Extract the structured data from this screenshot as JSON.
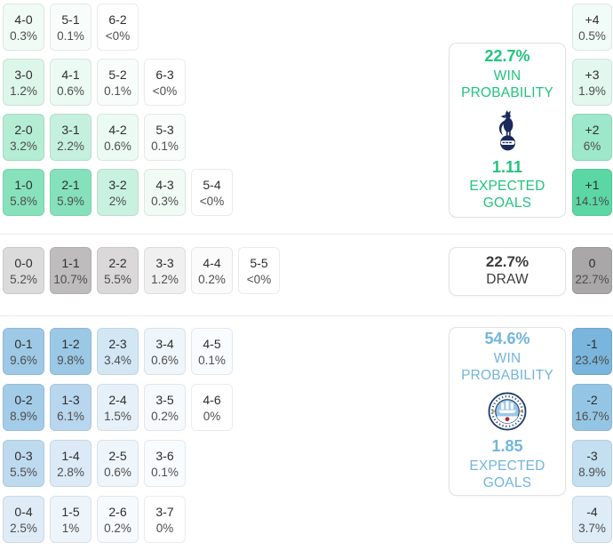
{
  "chart_data": {
    "type": "heatmap",
    "title": "Correct score probability matrix with win/draw probabilities and expected goals",
    "home_team": "Tottenham Hotspur",
    "away_team": "Manchester City",
    "legend_position": "right-center panels",
    "sections": {
      "home": {
        "panel": {
          "win_pct": "22.7%",
          "win_label": "WIN\nPROBABILITY",
          "xg": "1.11",
          "xg_label": "EXPECTED\nGOALS",
          "logo_icon": "tottenham-hotspur-crest",
          "accent": "#21c47f"
        },
        "rows": [
          [
            {
              "score": "4-0",
              "pct": "0.3%",
              "bg": "#f0fbf6"
            },
            {
              "score": "5-1",
              "pct": "0.1%",
              "bg": "#f8fdfb"
            },
            {
              "score": "6-2",
              "pct": "<0%",
              "bg": "#ffffff"
            }
          ],
          [
            {
              "score": "3-0",
              "pct": "1.2%",
              "bg": "#ddf6ea"
            },
            {
              "score": "4-1",
              "pct": "0.6%",
              "bg": "#ebfaf3"
            },
            {
              "score": "5-2",
              "pct": "0.1%",
              "bg": "#f8fdfb"
            },
            {
              "score": "6-3",
              "pct": "<0%",
              "bg": "#ffffff"
            }
          ],
          [
            {
              "score": "2-0",
              "pct": "3.2%",
              "bg": "#b4edd4"
            },
            {
              "score": "3-1",
              "pct": "2.2%",
              "bg": "#c6f0de"
            },
            {
              "score": "4-2",
              "pct": "0.6%",
              "bg": "#ebfaf3"
            },
            {
              "score": "5-3",
              "pct": "0.1%",
              "bg": "#f8fdfb"
            }
          ],
          [
            {
              "score": "1-0",
              "pct": "5.8%",
              "bg": "#87e2bc"
            },
            {
              "score": "2-1",
              "pct": "5.9%",
              "bg": "#85e1bb"
            },
            {
              "score": "3-2",
              "pct": "2%",
              "bg": "#c9f1e0"
            },
            {
              "score": "4-3",
              "pct": "0.3%",
              "bg": "#f0fbf6"
            },
            {
              "score": "5-4",
              "pct": "<0%",
              "bg": "#ffffff"
            }
          ]
        ],
        "margins": [
          {
            "label": "+4",
            "pct": "0.5%",
            "bg": "#f1fbf7"
          },
          {
            "label": "+3",
            "pct": "1.9%",
            "bg": "#e2f7ee"
          },
          {
            "label": "+2",
            "pct": "6%",
            "bg": "#9de8ca"
          },
          {
            "label": "+1",
            "pct": "14.1%",
            "bg": "#5bd7a4"
          }
        ]
      },
      "draw": {
        "panel": {
          "pct": "22.7%",
          "label": "DRAW",
          "accent": "#3c3c3c"
        },
        "rows": [
          [
            {
              "score": "0-0",
              "pct": "5.2%",
              "bg": "#dcdbdb"
            },
            {
              "score": "1-1",
              "pct": "10.7%",
              "bg": "#bebcbd"
            },
            {
              "score": "2-2",
              "pct": "5.5%",
              "bg": "#dad8d8"
            },
            {
              "score": "3-3",
              "pct": "1.2%",
              "bg": "#f1f0f0"
            },
            {
              "score": "4-4",
              "pct": "0.2%",
              "bg": "#fbfbfb"
            },
            {
              "score": "5-5",
              "pct": "<0%",
              "bg": "#ffffff"
            }
          ]
        ],
        "margins": [
          {
            "label": "0",
            "pct": "22.7%",
            "bg": "#a9a7a7"
          }
        ]
      },
      "away": {
        "panel": {
          "win_pct": "54.6%",
          "win_label": "WIN\nPROBABILITY",
          "xg": "1.85",
          "xg_label": "EXPECTED\nGOALS",
          "logo_icon": "manchester-city-crest",
          "accent": "#72b5dd"
        },
        "rows": [
          [
            {
              "score": "0-1",
              "pct": "9.6%",
              "bg": "#9dc9e6"
            },
            {
              "score": "1-2",
              "pct": "9.8%",
              "bg": "#9bc8e5"
            },
            {
              "score": "2-3",
              "pct": "3.4%",
              "bg": "#d2e6f4"
            },
            {
              "score": "3-4",
              "pct": "0.6%",
              "bg": "#eef5fb"
            },
            {
              "score": "4-5",
              "pct": "0.1%",
              "bg": "#f9fcfe"
            }
          ],
          [
            {
              "score": "0-2",
              "pct": "8.9%",
              "bg": "#a3cce8"
            },
            {
              "score": "1-3",
              "pct": "6.1%",
              "bg": "#b8d6ed"
            },
            {
              "score": "2-4",
              "pct": "1.5%",
              "bg": "#e6f0f8"
            },
            {
              "score": "3-5",
              "pct": "0.2%",
              "bg": "#f6fafd"
            },
            {
              "score": "4-6",
              "pct": "0%",
              "bg": "#ffffff"
            }
          ],
          [
            {
              "score": "0-3",
              "pct": "5.5%",
              "bg": "#bedaef"
            },
            {
              "score": "1-4",
              "pct": "2.8%",
              "bg": "#dbeaf6"
            },
            {
              "score": "2-5",
              "pct": "0.6%",
              "bg": "#eef5fb"
            },
            {
              "score": "3-6",
              "pct": "0.1%",
              "bg": "#f9fcfe"
            }
          ],
          [
            {
              "score": "0-4",
              "pct": "2.5%",
              "bg": "#dfecf7"
            },
            {
              "score": "1-5",
              "pct": "1%",
              "bg": "#edf4fa"
            },
            {
              "score": "2-6",
              "pct": "0.2%",
              "bg": "#f6fafd"
            },
            {
              "score": "3-7",
              "pct": "0%",
              "bg": "#ffffff"
            }
          ]
        ],
        "margins": [
          {
            "label": "-1",
            "pct": "23.4%",
            "bg": "#79b5dc"
          },
          {
            "label": "-2",
            "pct": "16.7%",
            "bg": "#95c5e4"
          },
          {
            "label": "-3",
            "pct": "8.9%",
            "bg": "#c4dff0"
          },
          {
            "label": "-4",
            "pct": "3.7%",
            "bg": "#ddecf6"
          }
        ]
      }
    }
  }
}
